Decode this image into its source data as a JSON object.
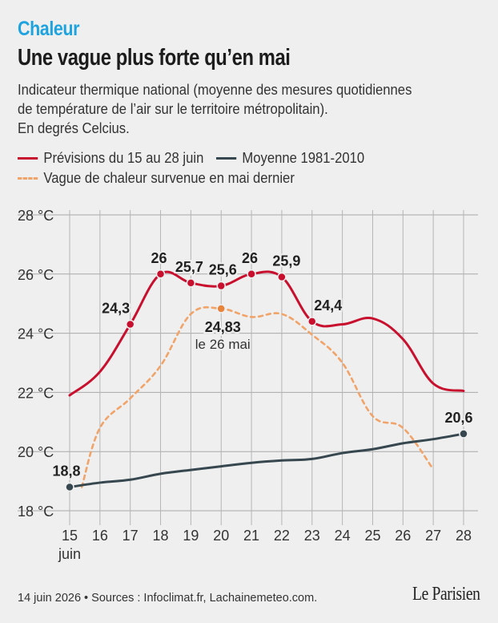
{
  "header": {
    "kicker": "Chaleur",
    "title": "Une vague plus forte qu’en mai",
    "subtitle_lines": [
      "Indicateur thermique national (moyenne des mesures quotidiennes",
      "de température de l’air sur le territoire métropolitain).",
      "En degrés Celcius."
    ]
  },
  "legend": {
    "forecast": "Prévisions du 15 au 28 juin",
    "average": "Moyenne 1981-2010",
    "may_wave": "Vague de chaleur survenue en mai dernier"
  },
  "colors": {
    "forecast": "#c8102e",
    "average": "#37474f",
    "may_wave": "#f0a46a",
    "may_peak": "#e8833a",
    "kicker": "#1fa3df"
  },
  "chart_data": {
    "type": "line",
    "x": [
      15,
      16,
      17,
      18,
      19,
      20,
      21,
      22,
      23,
      24,
      25,
      26,
      27,
      28
    ],
    "x_tick_labels": [
      "15",
      "16",
      "17",
      "18",
      "19",
      "20",
      "21",
      "22",
      "23",
      "24",
      "25",
      "26",
      "27",
      "28"
    ],
    "x_sublabel": "juin",
    "y_ticks": [
      18,
      20,
      22,
      24,
      26,
      28
    ],
    "y_tick_labels": [
      "18 °C",
      "20 °C",
      "22 °C",
      "24 °C",
      "26 °C",
      "28 °C"
    ],
    "ylim": [
      18,
      28
    ],
    "grid": true,
    "series": [
      {
        "name": "Prévisions du 15 au 28 juin",
        "style": "solid",
        "x": [
          15,
          16,
          17,
          18,
          19,
          20,
          21,
          22,
          23,
          24,
          25,
          26,
          27,
          28
        ],
        "values": [
          21.9,
          22.7,
          24.3,
          26.0,
          25.7,
          25.6,
          26.0,
          25.9,
          24.4,
          24.3,
          24.5,
          23.8,
          22.3,
          22.05
        ],
        "markers": [
          {
            "x": 17,
            "y": 24.3,
            "label": "24,3"
          },
          {
            "x": 18,
            "y": 26.0,
            "label": "26"
          },
          {
            "x": 19,
            "y": 25.7,
            "label": "25,7"
          },
          {
            "x": 20,
            "y": 25.6,
            "label": "25,6"
          },
          {
            "x": 21,
            "y": 26.0,
            "label": "26"
          },
          {
            "x": 22,
            "y": 25.9,
            "label": "25,9"
          },
          {
            "x": 23,
            "y": 24.4,
            "label": "24,4"
          }
        ]
      },
      {
        "name": "Moyenne 1981-2010",
        "style": "solid",
        "x": [
          15,
          16,
          17,
          18,
          19,
          20,
          21,
          22,
          23,
          24,
          25,
          26,
          27,
          28
        ],
        "values": [
          18.8,
          18.95,
          19.05,
          19.25,
          19.38,
          19.5,
          19.62,
          19.7,
          19.75,
          19.95,
          20.08,
          20.28,
          20.42,
          20.6
        ],
        "markers": [
          {
            "x": 15,
            "y": 18.8,
            "label": "18,8"
          },
          {
            "x": 28,
            "y": 20.6,
            "label": "20,6"
          }
        ]
      },
      {
        "name": "Vague de chaleur survenue en mai dernier",
        "style": "dashed",
        "x": [
          15.4,
          16,
          17,
          18,
          19,
          20,
          21,
          22,
          23,
          24,
          25,
          26,
          27
        ],
        "values": [
          18.8,
          20.8,
          21.8,
          22.9,
          24.65,
          24.83,
          24.55,
          24.65,
          23.95,
          23.0,
          21.2,
          20.8,
          19.4
        ],
        "markers": [
          {
            "x": 20,
            "y": 24.83,
            "label": "24,83",
            "sublabel": "le 26 mai"
          }
        ]
      }
    ]
  },
  "footer": {
    "source": "14 juin 2026 • Sources : Infoclimat.fr, Lachainemeteo.com.",
    "logo": "Le Parisien"
  }
}
